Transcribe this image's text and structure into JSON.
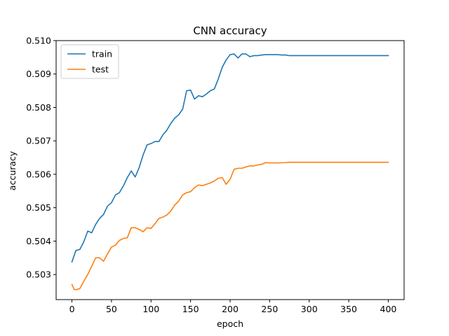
{
  "chart_data": {
    "type": "line",
    "title": "CNN accuracy",
    "xlabel": "epoch",
    "ylabel": "accuracy",
    "xlim": [
      -20,
      420
    ],
    "ylim": [
      0.50225,
      0.51
    ],
    "xticks": [
      0,
      50,
      100,
      150,
      200,
      250,
      300,
      350,
      400
    ],
    "xtick_labels": [
      "0",
      "50",
      "100",
      "150",
      "200",
      "250",
      "300",
      "350",
      "400"
    ],
    "yticks": [
      0.503,
      0.504,
      0.505,
      0.506,
      0.507,
      0.508,
      0.509,
      0.51
    ],
    "ytick_labels": [
      "0.503",
      "0.504",
      "0.505",
      "0.506",
      "0.507",
      "0.508",
      "0.509",
      "0.510"
    ],
    "grid": false,
    "legend_position": "top-left",
    "series": [
      {
        "name": "train",
        "color": "#1f77b4",
        "x": [
          0,
          5,
          10,
          15,
          20,
          25,
          30,
          35,
          40,
          45,
          50,
          55,
          60,
          65,
          70,
          75,
          80,
          85,
          90,
          95,
          100,
          105,
          110,
          115,
          120,
          125,
          130,
          135,
          140,
          145,
          150,
          155,
          160,
          165,
          170,
          175,
          180,
          185,
          190,
          195,
          200,
          205,
          210,
          215,
          220,
          225,
          230,
          235,
          240,
          245,
          250,
          255,
          260,
          265,
          270,
          275,
          300,
          350,
          400
        ],
        "y": [
          0.50338,
          0.50372,
          0.50375,
          0.50398,
          0.5043,
          0.50425,
          0.5045,
          0.50468,
          0.5048,
          0.50505,
          0.50515,
          0.50538,
          0.50545,
          0.50565,
          0.5059,
          0.5061,
          0.50592,
          0.5062,
          0.50658,
          0.50688,
          0.50692,
          0.50698,
          0.50698,
          0.50718,
          0.50732,
          0.50752,
          0.50768,
          0.50778,
          0.50795,
          0.5085,
          0.50852,
          0.50825,
          0.50835,
          0.50832,
          0.5084,
          0.5085,
          0.50855,
          0.50885,
          0.5092,
          0.50942,
          0.50958,
          0.5096,
          0.50948,
          0.5096,
          0.5096,
          0.50952,
          0.50955,
          0.50955,
          0.50957,
          0.50958,
          0.50958,
          0.50958,
          0.50958,
          0.50957,
          0.50957,
          0.50955,
          0.50955,
          0.50955,
          0.50955
        ]
      },
      {
        "name": "test",
        "color": "#ff7f0e",
        "x": [
          0,
          3,
          6,
          10,
          15,
          20,
          25,
          30,
          35,
          40,
          45,
          50,
          55,
          60,
          65,
          70,
          75,
          80,
          85,
          90,
          95,
          100,
          105,
          110,
          115,
          120,
          125,
          130,
          135,
          140,
          145,
          150,
          155,
          160,
          165,
          170,
          175,
          180,
          185,
          190,
          195,
          200,
          205,
          210,
          215,
          220,
          225,
          230,
          235,
          240,
          245,
          250,
          260,
          270,
          275,
          300,
          350,
          400
        ],
        "y": [
          0.5027,
          0.50255,
          0.50255,
          0.50258,
          0.5028,
          0.503,
          0.50325,
          0.5035,
          0.5035,
          0.5034,
          0.50362,
          0.50382,
          0.50388,
          0.50402,
          0.50408,
          0.5041,
          0.5044,
          0.5044,
          0.50435,
          0.50428,
          0.5044,
          0.50438,
          0.50452,
          0.50468,
          0.50472,
          0.50478,
          0.5049,
          0.50508,
          0.5052,
          0.50538,
          0.50545,
          0.50548,
          0.5056,
          0.50568,
          0.50566,
          0.5057,
          0.50574,
          0.5058,
          0.50588,
          0.5059,
          0.5057,
          0.50585,
          0.50615,
          0.50618,
          0.50618,
          0.50622,
          0.50625,
          0.50625,
          0.50628,
          0.5063,
          0.50635,
          0.50634,
          0.50634,
          0.50635,
          0.50636,
          0.50636,
          0.50636,
          0.50636
        ]
      }
    ]
  }
}
